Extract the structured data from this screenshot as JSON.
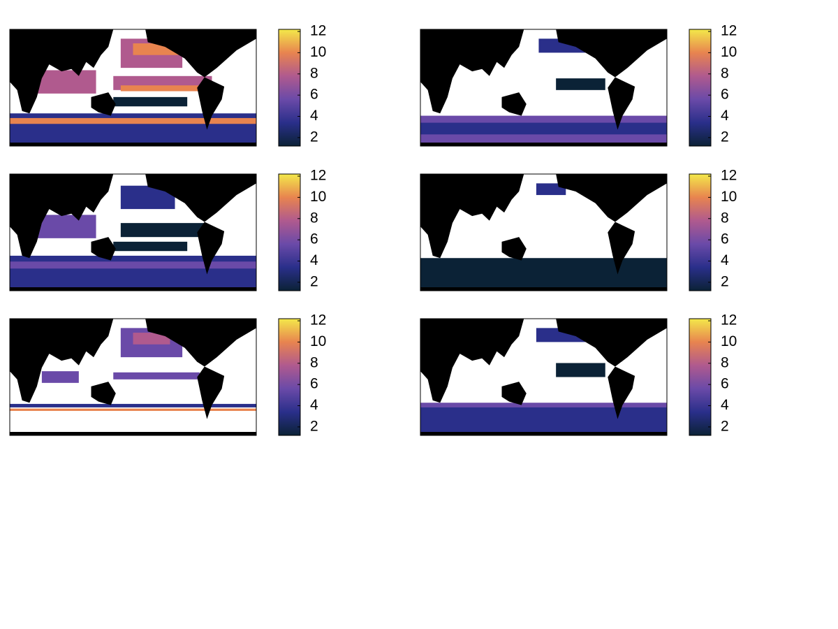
{
  "chart_data": [
    {
      "type": "map",
      "clim": [
        1.2,
        12.2
      ],
      "yticks": [
        2,
        4,
        6,
        8,
        10,
        12
      ],
      "colormap": [
        "#0b2236",
        "#2a2f8a",
        "#6a4aa8",
        "#b05a8e",
        "#e8844f",
        "#f3e84a"
      ]
    },
    {
      "type": "map",
      "clim": [
        1.2,
        12.2
      ],
      "yticks": [
        2,
        4,
        6,
        8,
        10,
        12
      ],
      "colormap": [
        "#0b2236",
        "#2a2f8a",
        "#6a4aa8",
        "#b05a8e",
        "#e8844f",
        "#f3e84a"
      ]
    },
    {
      "type": "map",
      "clim": [
        1.2,
        12.2
      ],
      "yticks": [
        2,
        4,
        6,
        8,
        10,
        12
      ],
      "colormap": [
        "#0b2236",
        "#2a2f8a",
        "#6a4aa8",
        "#b05a8e",
        "#e8844f",
        "#f3e84a"
      ]
    },
    {
      "type": "map",
      "clim": [
        1.2,
        12.2
      ],
      "yticks": [
        2,
        4,
        6,
        8,
        10,
        12
      ],
      "colormap": [
        "#0b2236",
        "#2a2f8a",
        "#6a4aa8",
        "#b05a8e",
        "#e8844f",
        "#f3e84a"
      ]
    },
    {
      "type": "map",
      "clim": [
        1.2,
        12.2
      ],
      "yticks": [
        2,
        4,
        6,
        8,
        10,
        12
      ],
      "colormap": [
        "#0b2236",
        "#2a2f8a",
        "#6a4aa8",
        "#b05a8e",
        "#e8844f",
        "#f3e84a"
      ]
    },
    {
      "type": "map",
      "clim": [
        1.2,
        12.2
      ],
      "yticks": [
        2,
        4,
        6,
        8,
        10,
        12
      ],
      "colormap": [
        "#0b2236",
        "#2a2f8a",
        "#6a4aa8",
        "#b05a8e",
        "#e8844f",
        "#f3e84a"
      ]
    }
  ]
}
